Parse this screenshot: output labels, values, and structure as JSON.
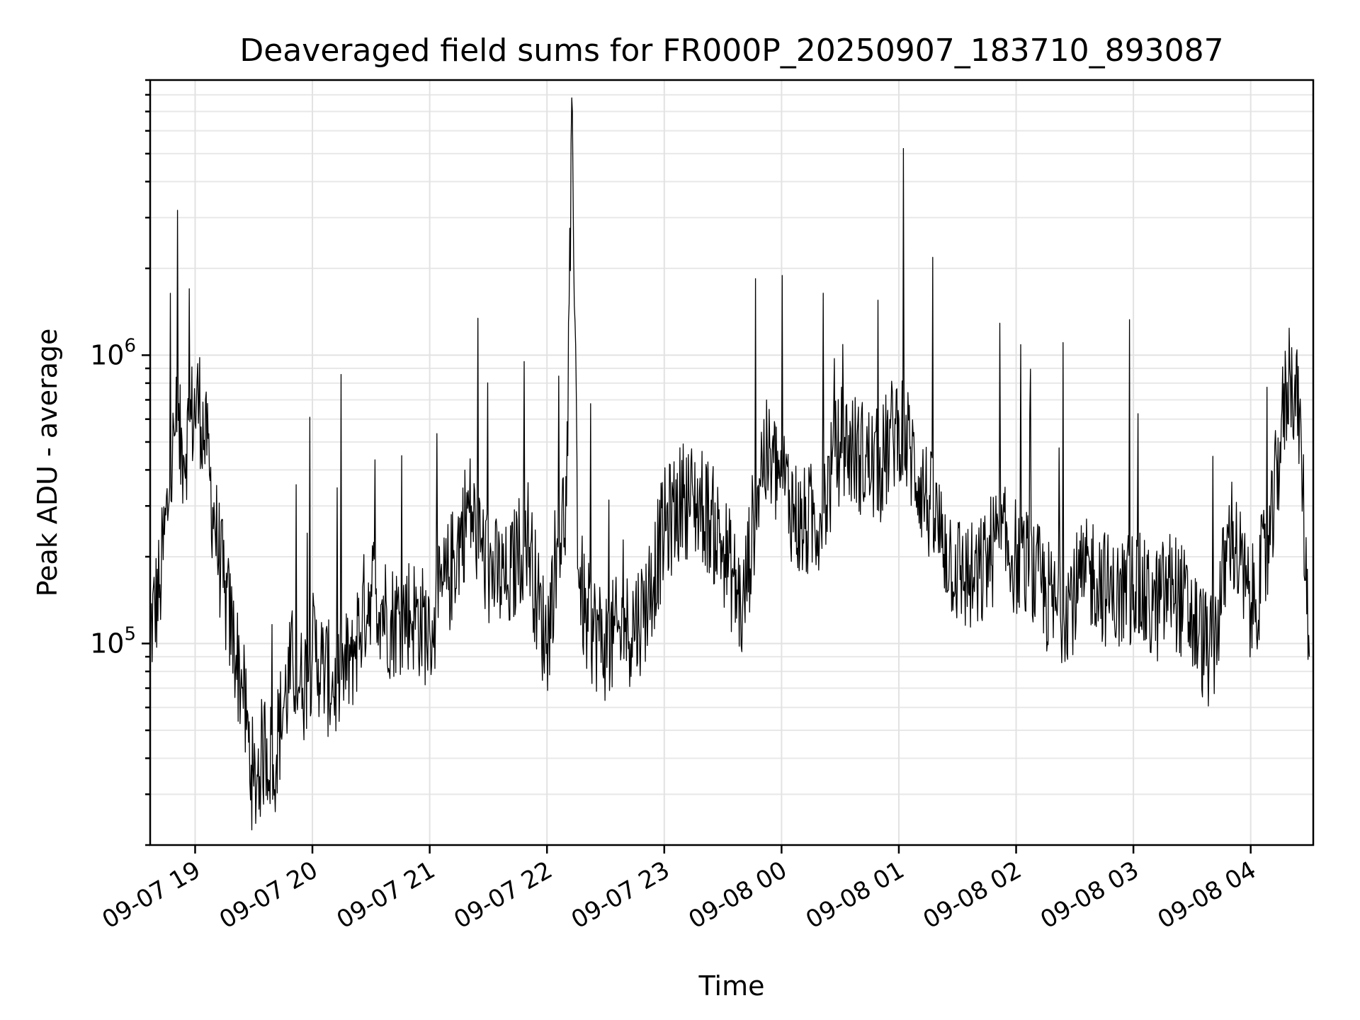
{
  "chart_data": {
    "type": "line",
    "title": "Deaveraged field sums for FR000P_20250907_183710_893087",
    "xlabel": "Time",
    "ylabel": "Peak ADU - average",
    "yscale": "log",
    "xlim": [
      "2025-09-07 18:37",
      "2025-09-08 04:32"
    ],
    "ylim": [
      20000,
      9000000
    ],
    "grid": true,
    "line_color": "#000000",
    "x_ticks": [
      {
        "at": "2025-09-07 19:00",
        "label": "09-07 19"
      },
      {
        "at": "2025-09-07 20:00",
        "label": "09-07 20"
      },
      {
        "at": "2025-09-07 21:00",
        "label": "09-07 21"
      },
      {
        "at": "2025-09-07 22:00",
        "label": "09-07 22"
      },
      {
        "at": "2025-09-07 23:00",
        "label": "09-07 23"
      },
      {
        "at": "2025-09-08 00:00",
        "label": "09-08 00"
      },
      {
        "at": "2025-09-08 01:00",
        "label": "09-08 01"
      },
      {
        "at": "2025-09-08 02:00",
        "label": "09-08 02"
      },
      {
        "at": "2025-09-08 03:00",
        "label": "09-08 03"
      },
      {
        "at": "2025-09-08 04:00",
        "label": "09-08 04"
      }
    ],
    "y_ticks": [
      {
        "value": 100000,
        "base": "10",
        "exp": "5"
      },
      {
        "value": 1000000,
        "base": "10",
        "exp": "6"
      }
    ],
    "series": [
      {
        "x": [
          "2025-09-07 18:37",
          "2025-09-07 18:42",
          "2025-09-07 18:47",
          "2025-09-07 18:50",
          "2025-09-07 18:54",
          "2025-09-07 18:58",
          "2025-09-07 19:02",
          "2025-09-07 19:06",
          "2025-09-07 19:10",
          "2025-09-07 19:15",
          "2025-09-07 19:20",
          "2025-09-07 19:24",
          "2025-09-07 19:30",
          "2025-09-07 19:36",
          "2025-09-07 19:40",
          "2025-09-07 19:45",
          "2025-09-07 19:50",
          "2025-09-07 19:55",
          "2025-09-07 20:00",
          "2025-09-07 20:05",
          "2025-09-07 20:10",
          "2025-09-07 20:15",
          "2025-09-07 20:20",
          "2025-09-07 20:30",
          "2025-09-07 20:40",
          "2025-09-07 20:50",
          "2025-09-07 21:00",
          "2025-09-07 21:10",
          "2025-09-07 21:20",
          "2025-09-07 21:30",
          "2025-09-07 21:40",
          "2025-09-07 21:45",
          "2025-09-07 21:50",
          "2025-09-07 21:55",
          "2025-09-07 22:00",
          "2025-09-07 22:05",
          "2025-09-07 22:10",
          "2025-09-07 22:13",
          "2025-09-07 22:16",
          "2025-09-07 22:20",
          "2025-09-07 22:30",
          "2025-09-07 22:40",
          "2025-09-07 22:50",
          "2025-09-07 23:00",
          "2025-09-07 23:10",
          "2025-09-07 23:20",
          "2025-09-07 23:30",
          "2025-09-07 23:40",
          "2025-09-07 23:50",
          "2025-09-08 00:00",
          "2025-09-08 00:10",
          "2025-09-08 00:20",
          "2025-09-08 00:30",
          "2025-09-08 00:40",
          "2025-09-08 00:50",
          "2025-09-08 01:00",
          "2025-09-08 01:10",
          "2025-09-08 01:20",
          "2025-09-08 01:30",
          "2025-09-08 01:40",
          "2025-09-08 01:50",
          "2025-09-08 02:00",
          "2025-09-08 02:10",
          "2025-09-08 02:20",
          "2025-09-08 02:30",
          "2025-09-08 02:40",
          "2025-09-08 02:50",
          "2025-09-08 03:00",
          "2025-09-08 03:10",
          "2025-09-08 03:20",
          "2025-09-08 03:30",
          "2025-09-08 03:40",
          "2025-09-08 03:50",
          "2025-09-08 04:00",
          "2025-09-08 04:10",
          "2025-09-08 04:15",
          "2025-09-08 04:20",
          "2025-09-08 04:25",
          "2025-09-08 04:30"
        ],
        "y": [
          110000,
          160000,
          350000,
          550000,
          450000,
          600000,
          700000,
          450000,
          260000,
          150000,
          100000,
          70000,
          32000,
          45000,
          38000,
          60000,
          85000,
          70000,
          95000,
          85000,
          70000,
          75000,
          90000,
          160000,
          120000,
          130000,
          110000,
          170000,
          300000,
          180000,
          160000,
          200000,
          250000,
          140000,
          100000,
          220000,
          300000,
          7000000,
          180000,
          120000,
          100000,
          110000,
          130000,
          250000,
          320000,
          300000,
          220000,
          130000,
          450000,
          380000,
          250000,
          280000,
          500000,
          450000,
          400000,
          600000,
          380000,
          250000,
          180000,
          160000,
          230000,
          200000,
          170000,
          130000,
          150000,
          180000,
          140000,
          160000,
          130000,
          160000,
          120000,
          90000,
          250000,
          130000,
          220000,
          500000,
          900000,
          650000,
          90000
        ]
      }
    ]
  }
}
